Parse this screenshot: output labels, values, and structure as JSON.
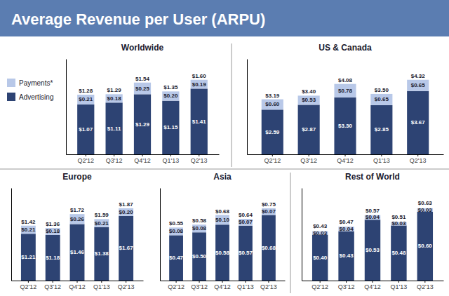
{
  "title": "Average Revenue per User (ARPU)",
  "chart_data": [
    {
      "type": "bar",
      "title": "Worldwide",
      "stacked": true,
      "data_labels": true,
      "tick_labels": "x",
      "legend": "upper left",
      "categories": [
        "Q2'12",
        "Q3'12",
        "Q4'12",
        "Q1'13",
        "Q2'13"
      ],
      "ylim": [
        0,
        2.048
      ],
      "series": [
        {
          "name": "Advertising",
          "color": "#2d4373",
          "values": [
            1.07,
            1.11,
            1.29,
            1.15,
            1.41
          ],
          "value_labels": [
            "$1.07",
            "$1.11",
            "$1.29",
            "$1.15",
            "$1.41"
          ]
        },
        {
          "name": "Payments*",
          "color": "#b8c8e8",
          "values": [
            0.21,
            0.18,
            0.25,
            0.2,
            0.19
          ],
          "value_labels": [
            "$0.21",
            "$0.18",
            "$0.25",
            "$0.20",
            "$0.19"
          ]
        }
      ],
      "totals": [
        1.28,
        1.29,
        1.54,
        1.35,
        1.6
      ],
      "total_labels": [
        "$1.28",
        "$1.29",
        "$1.54",
        "$1.35",
        "$1.60"
      ]
    },
    {
      "type": "bar",
      "title": "US & Canada",
      "stacked": true,
      "data_labels": true,
      "tick_labels": "x",
      "categories": [
        "Q2'12",
        "Q3'12",
        "Q4'12",
        "Q1'13",
        "Q2'13"
      ],
      "ylim": [
        0,
        5.5296
      ],
      "series": [
        {
          "name": "Advertising",
          "color": "#2d4373",
          "values": [
            2.59,
            2.87,
            3.3,
            2.85,
            3.67
          ],
          "value_labels": [
            "$2.59",
            "$2.87",
            "$3.30",
            "$2.85",
            "$3.67"
          ]
        },
        {
          "name": "Payments*",
          "color": "#b8c8e8",
          "values": [
            0.6,
            0.53,
            0.78,
            0.65,
            0.65
          ],
          "value_labels": [
            "$0.60",
            "$0.53",
            "$0.78",
            "$0.65",
            "$0.65"
          ]
        }
      ],
      "totals": [
        3.19,
        3.4,
        4.08,
        3.5,
        4.32
      ],
      "total_labels": [
        "$3.19",
        "$3.40",
        "$4.08",
        "$3.50",
        "$4.32"
      ]
    },
    {
      "type": "bar",
      "title": "Europe",
      "stacked": true,
      "data_labels": true,
      "tick_labels": "x",
      "categories": [
        "Q2'12",
        "Q3'12",
        "Q4'12",
        "Q1'13",
        "Q2'13"
      ],
      "ylim": [
        0,
        2.3936
      ],
      "series": [
        {
          "name": "Advertising",
          "color": "#2d4373",
          "values": [
            1.21,
            1.18,
            1.46,
            1.38,
            1.67
          ],
          "value_labels": [
            "$1.21",
            "$1.18",
            "$1.46",
            "$1.38",
            "$1.67"
          ]
        },
        {
          "name": "Payments*",
          "color": "#b8c8e8",
          "values": [
            0.21,
            0.18,
            0.26,
            0.21,
            0.2
          ],
          "value_labels": [
            "$0.21",
            "$0.18",
            "$0.26",
            "$0.21",
            "$0.20"
          ]
        }
      ],
      "totals": [
        1.42,
        1.36,
        1.72,
        1.59,
        1.87
      ],
      "total_labels": [
        "$1.42",
        "$1.36",
        "$1.72",
        "$1.59",
        "$1.87"
      ]
    },
    {
      "type": "bar",
      "title": "Asia",
      "stacked": true,
      "data_labels": true,
      "tick_labels": "x",
      "categories": [
        "Q2'12",
        "Q3'12",
        "Q4'12",
        "Q1'13",
        "Q2'13"
      ],
      "ylim": [
        0,
        0.96
      ],
      "series": [
        {
          "name": "Advertising",
          "color": "#2d4373",
          "values": [
            0.47,
            0.5,
            0.58,
            0.57,
            0.68
          ],
          "value_labels": [
            "$0.47",
            "$0.50",
            "$0.58",
            "$0.57",
            "$0.68"
          ]
        },
        {
          "name": "Payments*",
          "color": "#b8c8e8",
          "values": [
            0.08,
            0.08,
            0.1,
            0.07,
            0.07
          ],
          "value_labels": [
            "$0.08",
            "$0.08",
            "$0.10",
            "$0.07",
            "$0.07"
          ]
        }
      ],
      "totals": [
        0.55,
        0.58,
        0.68,
        0.64,
        0.75
      ],
      "total_labels": [
        "$0.55",
        "$0.58",
        "$0.68",
        "$0.64",
        "$0.75"
      ]
    },
    {
      "type": "bar",
      "title": "Rest of World",
      "stacked": true,
      "data_labels": true,
      "tick_labels": "x",
      "categories": [
        "Q2'12",
        "Q3'12",
        "Q4'12",
        "Q1'13",
        "Q2'13"
      ],
      "ylim": [
        0,
        0.8064
      ],
      "series": [
        {
          "name": "Advertising",
          "color": "#2d4373",
          "values": [
            0.4,
            0.43,
            0.53,
            0.48,
            0.6
          ],
          "value_labels": [
            "$0.40",
            "$0.43",
            "$0.53",
            "$0.48",
            "$0.60"
          ]
        },
        {
          "name": "Payments*",
          "color": "#b8c8e8",
          "values": [
            0.03,
            0.04,
            0.04,
            0.03,
            0.03
          ],
          "value_labels": [
            "$0.03",
            "$0.04",
            "$0.04",
            "$0.03",
            "$0.03"
          ]
        }
      ],
      "totals": [
        0.43,
        0.47,
        0.57,
        0.51,
        0.63
      ],
      "total_labels": [
        "$0.43",
        "$0.47",
        "$0.57",
        "$0.51",
        "$0.63"
      ]
    }
  ]
}
